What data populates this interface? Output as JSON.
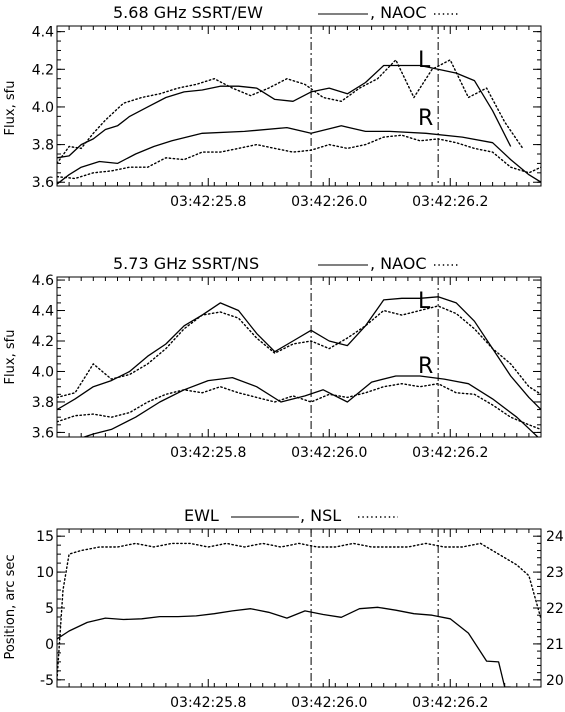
{
  "chart_data": [
    {
      "type": "line",
      "title_prefix": "5.68 GHz SSRT/EW",
      "title_mid": ", NAOC",
      "ylabel": "Flux, sfu",
      "ylim": [
        3.58,
        4.43
      ],
      "yticks": [
        "3.6",
        "3.8",
        "4.0",
        "4.2",
        "4.4"
      ],
      "x_tick_labels": [
        "03:42:25.8",
        "03:42:26.0",
        "03:42:26.2"
      ],
      "x_tick_values": [
        25.8,
        26.0,
        26.2
      ],
      "vlines": [
        25.97,
        26.18
      ],
      "xlim": [
        25.55,
        26.35
      ],
      "annotations": [
        "L",
        "R"
      ],
      "series": [
        {
          "name": "SSRT/EW L",
          "style": "solid",
          "x": [
            25.55,
            25.57,
            25.59,
            25.61,
            25.63,
            25.65,
            25.67,
            25.7,
            25.73,
            25.76,
            25.79,
            25.82,
            25.85,
            25.88,
            25.91,
            25.94,
            25.97,
            26.0,
            26.03,
            26.06,
            26.09,
            26.12,
            26.15,
            26.18,
            26.21,
            26.24,
            26.27,
            26.3
          ],
          "y": [
            3.73,
            3.74,
            3.8,
            3.83,
            3.88,
            3.9,
            3.95,
            4.0,
            4.05,
            4.08,
            4.09,
            4.11,
            4.11,
            4.1,
            4.04,
            4.03,
            4.08,
            4.1,
            4.07,
            4.13,
            4.22,
            4.22,
            4.22,
            4.2,
            4.18,
            4.14,
            3.98,
            3.79
          ]
        },
        {
          "name": "SSRT/EW R",
          "style": "solid",
          "x": [
            25.55,
            25.57,
            25.59,
            25.62,
            25.65,
            25.68,
            25.71,
            25.74,
            25.79,
            25.86,
            25.93,
            25.97,
            26.02,
            26.06,
            26.1,
            26.16,
            26.22,
            26.27,
            26.3,
            26.33,
            26.35
          ],
          "y": [
            3.59,
            3.64,
            3.68,
            3.71,
            3.7,
            3.75,
            3.79,
            3.82,
            3.86,
            3.87,
            3.89,
            3.86,
            3.9,
            3.87,
            3.87,
            3.86,
            3.84,
            3.81,
            3.72,
            3.64,
            3.6
          ]
        },
        {
          "name": "NAOC L",
          "style": "dotted",
          "x": [
            25.55,
            25.57,
            25.59,
            25.61,
            25.63,
            25.66,
            25.69,
            25.72,
            25.75,
            25.78,
            25.81,
            25.84,
            25.87,
            25.9,
            25.93,
            25.96,
            25.99,
            26.02,
            26.05,
            26.08,
            26.11,
            26.14,
            26.17,
            26.2,
            26.23,
            26.26,
            26.29,
            26.32
          ],
          "y": [
            3.7,
            3.79,
            3.78,
            3.86,
            3.93,
            4.02,
            4.05,
            4.07,
            4.1,
            4.12,
            4.15,
            4.1,
            4.06,
            4.1,
            4.15,
            4.12,
            4.05,
            4.03,
            4.1,
            4.15,
            4.25,
            4.05,
            4.2,
            4.25,
            4.05,
            4.1,
            3.92,
            3.78
          ]
        },
        {
          "name": "NAOC R",
          "style": "dotted",
          "x": [
            25.55,
            25.58,
            25.61,
            25.64,
            25.67,
            25.7,
            25.73,
            25.76,
            25.79,
            25.82,
            25.85,
            25.88,
            25.91,
            25.94,
            25.97,
            26.0,
            26.03,
            26.06,
            26.09,
            26.12,
            26.15,
            26.18,
            26.21,
            26.24,
            26.27,
            26.3,
            26.33,
            26.35
          ],
          "y": [
            3.63,
            3.62,
            3.65,
            3.66,
            3.68,
            3.68,
            3.73,
            3.72,
            3.76,
            3.76,
            3.78,
            3.8,
            3.78,
            3.76,
            3.77,
            3.8,
            3.78,
            3.8,
            3.84,
            3.85,
            3.82,
            3.83,
            3.81,
            3.78,
            3.76,
            3.68,
            3.65,
            3.68
          ]
        }
      ]
    },
    {
      "type": "line",
      "title_prefix": "5.73 GHz SSRT/NS",
      "title_mid": ", NAOC",
      "ylabel": "Flux, sfu",
      "ylim": [
        3.57,
        4.62
      ],
      "yticks": [
        "3.6",
        "3.8",
        "4.0",
        "4.2",
        "4.4",
        "4.6"
      ],
      "x_tick_labels": [
        "03:42:25.8",
        "03:42:26.0",
        "03:42:26.2"
      ],
      "x_tick_values": [
        25.8,
        26.0,
        26.2
      ],
      "vlines": [
        25.97,
        26.18
      ],
      "xlim": [
        25.55,
        26.35
      ],
      "annotations": [
        "L",
        "R"
      ],
      "series": [
        {
          "name": "SSRT/NS L",
          "style": "solid",
          "x": [
            25.55,
            25.58,
            25.61,
            25.64,
            25.67,
            25.7,
            25.73,
            25.76,
            25.79,
            25.82,
            25.85,
            25.88,
            25.91,
            25.94,
            25.97,
            26.0,
            26.03,
            26.06,
            26.09,
            26.12,
            26.15,
            26.18,
            26.21,
            26.24,
            26.27,
            26.3,
            26.33,
            26.35
          ],
          "y": [
            3.75,
            3.82,
            3.9,
            3.94,
            4.0,
            4.1,
            4.18,
            4.3,
            4.37,
            4.45,
            4.4,
            4.25,
            4.13,
            4.2,
            4.27,
            4.2,
            4.17,
            4.3,
            4.47,
            4.48,
            4.48,
            4.49,
            4.45,
            4.33,
            4.15,
            3.97,
            3.83,
            3.75
          ]
        },
        {
          "name": "SSRT/NS R",
          "style": "solid",
          "x": [
            25.55,
            25.58,
            25.61,
            25.64,
            25.68,
            25.72,
            25.76,
            25.8,
            25.84,
            25.88,
            25.92,
            25.96,
            25.99,
            26.03,
            26.07,
            26.11,
            26.15,
            26.19,
            26.23,
            26.27,
            26.31,
            26.35
          ],
          "y": [
            3.52,
            3.55,
            3.59,
            3.62,
            3.7,
            3.8,
            3.88,
            3.94,
            3.96,
            3.9,
            3.8,
            3.84,
            3.88,
            3.8,
            3.93,
            3.97,
            3.97,
            3.95,
            3.92,
            3.82,
            3.7,
            3.55
          ]
        },
        {
          "name": "NAOC L",
          "style": "dotted",
          "x": [
            25.55,
            25.58,
            25.61,
            25.64,
            25.67,
            25.7,
            25.73,
            25.76,
            25.79,
            25.82,
            25.85,
            25.88,
            25.91,
            25.94,
            25.97,
            26.0,
            26.03,
            26.06,
            26.09,
            26.12,
            26.15,
            26.18,
            26.21,
            26.24,
            26.27,
            26.3,
            26.33,
            26.35
          ],
          "y": [
            3.83,
            3.86,
            4.05,
            3.95,
            3.98,
            4.05,
            4.15,
            4.28,
            4.37,
            4.39,
            4.35,
            4.22,
            4.12,
            4.18,
            4.2,
            4.15,
            4.22,
            4.3,
            4.4,
            4.37,
            4.4,
            4.43,
            4.38,
            4.28,
            4.15,
            4.05,
            3.9,
            3.85
          ]
        },
        {
          "name": "NAOC R",
          "style": "dotted",
          "x": [
            25.55,
            25.58,
            25.61,
            25.64,
            25.67,
            25.7,
            25.73,
            25.76,
            25.79,
            25.82,
            25.85,
            25.88,
            25.91,
            25.94,
            25.97,
            26.0,
            26.03,
            26.06,
            26.09,
            26.12,
            26.15,
            26.18,
            26.21,
            26.24,
            26.27,
            26.3,
            26.33,
            26.35
          ],
          "y": [
            3.67,
            3.71,
            3.72,
            3.7,
            3.73,
            3.8,
            3.85,
            3.88,
            3.86,
            3.9,
            3.86,
            3.83,
            3.8,
            3.84,
            3.8,
            3.85,
            3.83,
            3.86,
            3.9,
            3.92,
            3.9,
            3.92,
            3.86,
            3.85,
            3.78,
            3.7,
            3.65,
            3.62
          ]
        }
      ]
    },
    {
      "type": "line",
      "title_prefix": "EWL",
      "title_mid": ", NSL",
      "ylabel": "Position, arc sec",
      "ylim": [
        -6,
        16
      ],
      "yticks": [
        "-5",
        "0",
        "5",
        "10",
        "15"
      ],
      "y2lim": [
        19.8,
        24.2
      ],
      "y2ticks": [
        "20",
        "21",
        "22",
        "23",
        "24"
      ],
      "x_tick_labels": [
        "03:42:25.8",
        "03:42:26.0",
        "03:42:26.2"
      ],
      "x_tick_values": [
        25.8,
        26.0,
        26.2
      ],
      "vlines": [
        25.97,
        26.18
      ],
      "xlim": [
        25.55,
        26.35
      ],
      "series": [
        {
          "name": "EWL",
          "style": "solid",
          "x": [
            25.55,
            25.57,
            25.6,
            25.63,
            25.66,
            25.69,
            25.72,
            25.75,
            25.78,
            25.81,
            25.84,
            25.87,
            25.9,
            25.93,
            25.96,
            25.99,
            26.02,
            26.05,
            26.08,
            26.11,
            26.14,
            26.17,
            26.2,
            26.23,
            26.26,
            26.28,
            26.29,
            26.3
          ],
          "y": [
            0.7,
            1.8,
            3.0,
            3.6,
            3.4,
            3.5,
            3.8,
            3.8,
            3.9,
            4.2,
            4.6,
            4.9,
            4.4,
            3.6,
            4.6,
            4.1,
            3.7,
            4.9,
            5.1,
            4.7,
            4.2,
            4.0,
            3.5,
            1.5,
            -2.4,
            -2.5,
            -6,
            -6
          ]
        },
        {
          "name": "NSL",
          "style": "dotted",
          "axis": "right",
          "x": [
            25.55,
            25.56,
            25.57,
            25.59,
            25.62,
            25.65,
            25.68,
            25.71,
            25.74,
            25.77,
            25.8,
            25.83,
            25.86,
            25.89,
            25.92,
            25.95,
            25.98,
            26.01,
            26.04,
            26.07,
            26.1,
            26.13,
            26.16,
            26.19,
            26.22,
            26.25,
            26.28,
            26.31,
            26.33,
            26.35
          ],
          "y": [
            20.0,
            22.5,
            23.5,
            23.6,
            23.7,
            23.7,
            23.8,
            23.7,
            23.8,
            23.8,
            23.7,
            23.8,
            23.7,
            23.8,
            23.7,
            23.8,
            23.7,
            23.7,
            23.8,
            23.7,
            23.7,
            23.7,
            23.8,
            23.7,
            23.7,
            23.8,
            23.5,
            23.2,
            22.9,
            21.7
          ]
        }
      ]
    }
  ]
}
